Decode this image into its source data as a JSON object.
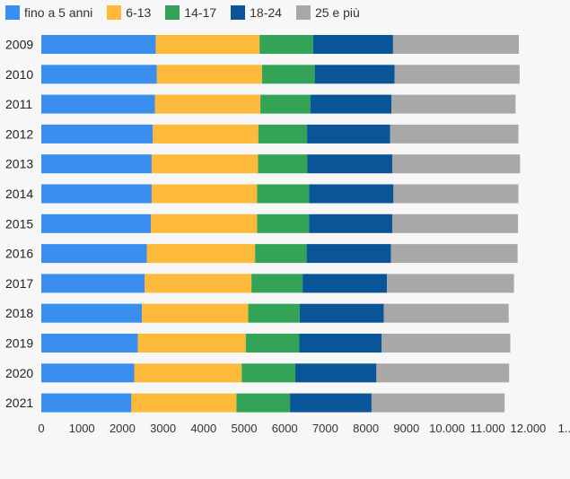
{
  "chart_data": {
    "type": "bar",
    "orientation": "horizontal",
    "stacked": true,
    "title": "",
    "xlabel": "",
    "ylabel": "",
    "categories": [
      "2009",
      "2010",
      "2011",
      "2012",
      "2013",
      "2014",
      "2015",
      "2016",
      "2017",
      "2018",
      "2019",
      "2020",
      "2021"
    ],
    "series": [
      {
        "name": "fino a 5 anni",
        "color": "#3a8ef0",
        "values": [
          2820,
          2850,
          2800,
          2750,
          2720,
          2720,
          2700,
          2600,
          2550,
          2480,
          2380,
          2290,
          2220
        ]
      },
      {
        "name": "6-13",
        "color": "#fdb93a",
        "values": [
          2560,
          2590,
          2600,
          2600,
          2620,
          2600,
          2620,
          2670,
          2630,
          2620,
          2660,
          2650,
          2590
        ]
      },
      {
        "name": "14-17",
        "color": "#33a457",
        "values": [
          1320,
          1300,
          1230,
          1200,
          1220,
          1280,
          1280,
          1270,
          1260,
          1270,
          1320,
          1320,
          1320
        ]
      },
      {
        "name": "18-24",
        "color": "#0a5597",
        "values": [
          1970,
          1970,
          2000,
          2050,
          2090,
          2080,
          2050,
          2080,
          2080,
          2070,
          2030,
          2000,
          2010
        ]
      },
      {
        "name": "25 e più",
        "color": "#a8a8a8",
        "values": [
          3100,
          3080,
          3060,
          3160,
          3150,
          3080,
          3100,
          3120,
          3130,
          3080,
          3170,
          3270,
          3280
        ]
      }
    ],
    "xlim": [
      0,
      12000
    ],
    "xticks": [
      "0",
      "1000",
      "2000",
      "3000",
      "4000",
      "5000",
      "6000",
      "7000",
      "8000",
      "9000",
      "10.000",
      "11.000",
      "12.000",
      "1..."
    ],
    "grid": false,
    "legend": "top-left"
  }
}
